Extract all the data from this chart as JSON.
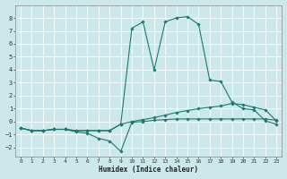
{
  "xlabel": "Humidex (Indice chaleur)",
  "bg_color": "#cce8ea",
  "grid_color": "#ffffff",
  "line_color": "#1a7a6e",
  "xlim": [
    -0.5,
    23.5
  ],
  "ylim": [
    -2.7,
    9.0
  ],
  "xticks": [
    0,
    1,
    2,
    3,
    4,
    5,
    6,
    7,
    8,
    9,
    10,
    11,
    12,
    13,
    14,
    15,
    16,
    17,
    18,
    19,
    20,
    21,
    22,
    23
  ],
  "yticks": [
    -2,
    -1,
    0,
    1,
    2,
    3,
    4,
    5,
    6,
    7,
    8
  ],
  "line_spike_x": [
    0,
    1,
    2,
    3,
    4,
    5,
    6,
    7,
    8,
    9,
    10,
    11,
    12,
    13,
    14,
    15,
    16,
    17,
    18,
    19,
    20,
    21,
    22,
    23
  ],
  "line_spike_y": [
    -0.5,
    -0.7,
    -0.7,
    -0.6,
    -0.6,
    -0.7,
    -0.7,
    -0.7,
    -0.7,
    -0.2,
    7.2,
    7.7,
    4.0,
    7.7,
    8.0,
    8.1,
    7.5,
    3.2,
    3.1,
    1.5,
    1.0,
    0.9,
    0.05,
    -0.2
  ],
  "line_dip_x": [
    0,
    1,
    2,
    3,
    4,
    5,
    6,
    7,
    8,
    9,
    10,
    11,
    12,
    13,
    14,
    15,
    16,
    17,
    18,
    19,
    20,
    21,
    22,
    23
  ],
  "line_dip_y": [
    -0.5,
    -0.7,
    -0.7,
    -0.6,
    -0.6,
    -0.8,
    -0.9,
    -1.3,
    -1.5,
    -2.3,
    -0.05,
    0.0,
    0.1,
    0.15,
    0.2,
    0.2,
    0.2,
    0.2,
    0.2,
    0.2,
    0.2,
    0.2,
    0.2,
    0.1
  ],
  "line_rise_x": [
    0,
    1,
    2,
    3,
    4,
    5,
    6,
    7,
    8,
    9,
    10,
    11,
    12,
    13,
    14,
    15,
    16,
    17,
    18,
    19,
    20,
    21,
    22,
    23
  ],
  "line_rise_y": [
    -0.5,
    -0.7,
    -0.7,
    -0.6,
    -0.6,
    -0.7,
    -0.7,
    -0.7,
    -0.7,
    -0.2,
    0.0,
    0.15,
    0.3,
    0.5,
    0.7,
    0.85,
    1.0,
    1.1,
    1.2,
    1.4,
    1.3,
    1.1,
    0.9,
    0.05
  ]
}
